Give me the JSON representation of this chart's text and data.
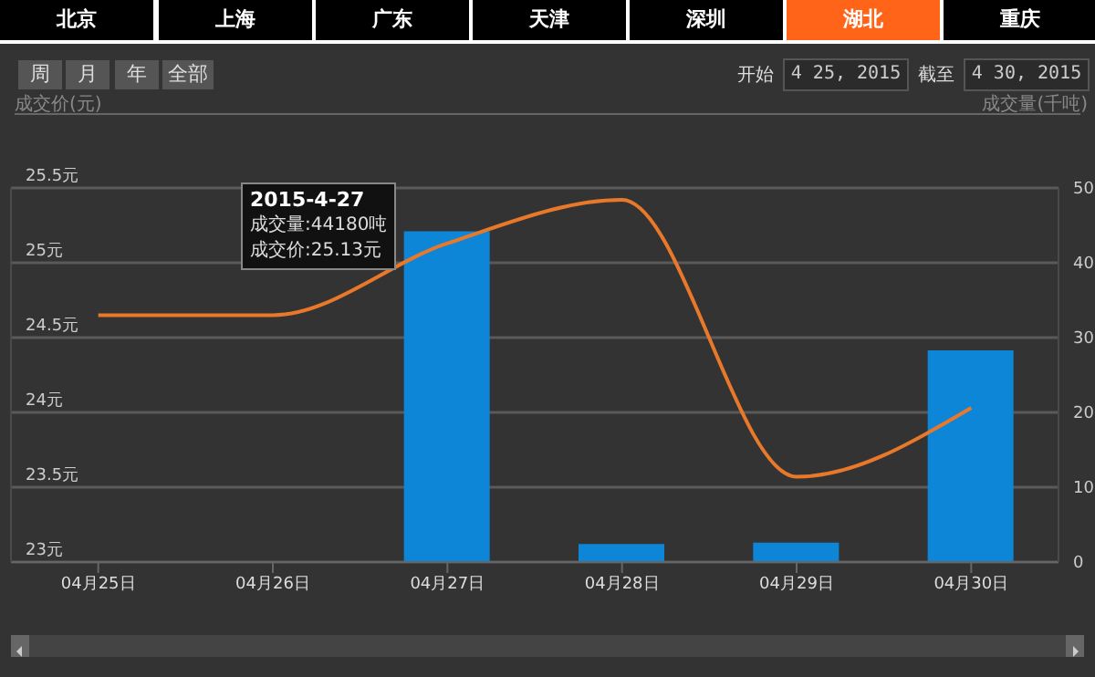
{
  "chart_data": {
    "type": "bar",
    "ylabel": "成交价(元)",
    "y2label": "成交量(千吨)",
    "categories": [
      "04月25日",
      "04月26日",
      "04月27日",
      "04月28日",
      "04月29日",
      "04月30日"
    ],
    "series": [
      {
        "axis": "y2",
        "color": "#0e86d8",
        "values": [
          null,
          null,
          44.2,
          2.4,
          2.6,
          28.3
        ]
      },
      {
        "type": "line",
        "color": "#e8782a",
        "values": [
          24.65,
          24.65,
          25.13,
          25.42,
          23.57,
          24.03
        ]
      }
    ],
    "ylim": [
      23,
      25.5
    ],
    "yticks": [
      {
        "value": 23,
        "label": "23元"
      },
      {
        "value": 23.5,
        "label": "23.5元"
      },
      {
        "value": 24,
        "label": "24元"
      },
      {
        "value": 24.5,
        "label": "24.5元"
      },
      {
        "value": 25,
        "label": "25元"
      },
      {
        "value": 25.5,
        "label": "25.5元"
      }
    ],
    "y2lim": [
      0,
      50
    ],
    "y2ticks": [
      0,
      10,
      20,
      30,
      40,
      50
    ],
    "grid": "y",
    "marker": "none",
    "annotations": [
      "北京",
      "上海",
      "广东",
      "天津",
      "深圳",
      "湖北",
      "重庆",
      "周",
      "月",
      "年",
      "全部",
      "开始",
      "4 25, 2015",
      "截至",
      "4 30, 2015",
      "2015-4-27",
      "成交量:44180吨",
      "成交价:25.13元"
    ]
  }
}
